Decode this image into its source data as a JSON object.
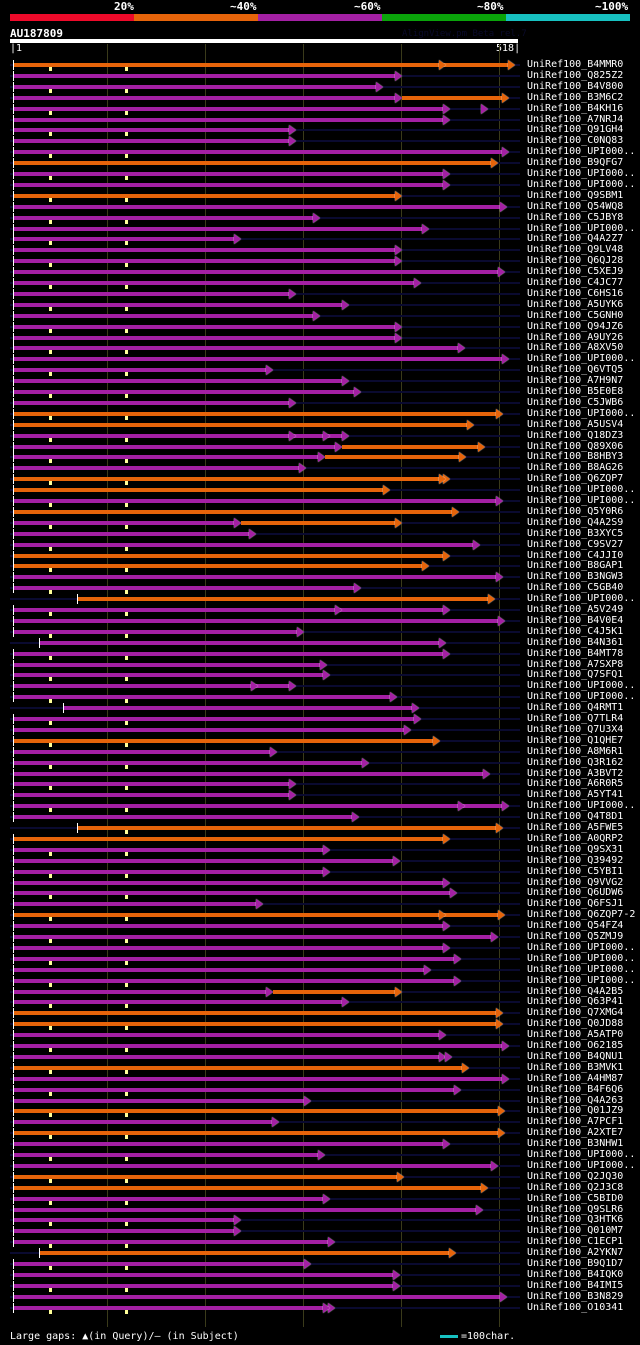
{
  "header": {
    "identity_scale": [
      {
        "label": "20%",
        "color": "#ee0a2a"
      },
      {
        "label": "~40%",
        "color": "#e6640a"
      },
      {
        "label": "~60%",
        "color": "#a420a4"
      },
      {
        "label": "~80%",
        "color": "#0aa40a"
      },
      {
        "label": "~100%",
        "color": "#17c1c1"
      }
    ],
    "query_name": "AU187809",
    "watermark": "AlignView.pm Beta rel.7",
    "query_start": "1",
    "query_end": "518"
  },
  "query_length": 518,
  "colors": {
    "orange": "#e6640a",
    "purple": "#a420a4",
    "track": "#0a0a30",
    "gap_marker": "#ffff99"
  },
  "hits": [
    {
      "name": "UniRef100_B4MMR0",
      "color": "orange",
      "start": 3,
      "end": 518,
      "mark": [
        446
      ]
    },
    {
      "name": "UniRef100_Q825Z2",
      "color": "purple",
      "start": 3,
      "end": 400
    },
    {
      "name": "UniRef100_B4V800",
      "color": "purple",
      "start": 3,
      "end": 380
    },
    {
      "name": "UniRef100_B3M6C2",
      "color": "purple",
      "start": 3,
      "end": 400,
      "tail": "orange",
      "tail_end": 512
    },
    {
      "name": "UniRef100_B4KH16",
      "color": "purple",
      "start": 3,
      "end": 450,
      "mark": [
        490
      ]
    },
    {
      "name": "UniRef100_A7NRJ4",
      "color": "purple",
      "start": 3,
      "end": 450
    },
    {
      "name": "UniRef100_Q91GH4",
      "color": "purple",
      "start": 3,
      "end": 290
    },
    {
      "name": "UniRef100_C0NQ83",
      "color": "purple",
      "start": 3,
      "end": 290
    },
    {
      "name": "UniRef100_UPI000..",
      "color": "purple",
      "start": 3,
      "end": 512
    },
    {
      "name": "UniRef100_B9QFG7",
      "color": "orange",
      "start": 3,
      "end": 500
    },
    {
      "name": "UniRef100_UPI000..",
      "color": "purple",
      "start": 3,
      "end": 450
    },
    {
      "name": "UniRef100_UPI000..",
      "color": "purple",
      "start": 3,
      "end": 450
    },
    {
      "name": "UniRef100_Q9SBM1",
      "color": "orange",
      "start": 3,
      "end": 400
    },
    {
      "name": "UniRef100_Q54WQ8",
      "color": "purple",
      "start": 3,
      "end": 510
    },
    {
      "name": "UniRef100_C5JBY8",
      "color": "purple",
      "start": 3,
      "end": 315
    },
    {
      "name": "UniRef100_UPI000..",
      "color": "purple",
      "start": 3,
      "end": 428
    },
    {
      "name": "UniRef100_Q4A2Z7",
      "color": "purple",
      "start": 3,
      "end": 232
    },
    {
      "name": "UniRef100_Q9LV48",
      "color": "purple",
      "start": 3,
      "end": 400
    },
    {
      "name": "UniRef100_Q6QJ28",
      "color": "purple",
      "start": 3,
      "end": 400
    },
    {
      "name": "UniRef100_C5XEJ9",
      "color": "purple",
      "start": 3,
      "end": 508
    },
    {
      "name": "UniRef100_C4JC77",
      "color": "purple",
      "start": 3,
      "end": 420
    },
    {
      "name": "UniRef100_C6HS16",
      "color": "purple",
      "start": 3,
      "end": 290
    },
    {
      "name": "UniRef100_A5UYK6",
      "color": "purple",
      "start": 3,
      "end": 345
    },
    {
      "name": "UniRef100_C5GNH0",
      "color": "purple",
      "start": 3,
      "end": 315
    },
    {
      "name": "UniRef100_Q94JZ6",
      "color": "purple",
      "start": 3,
      "end": 400
    },
    {
      "name": "UniRef100_A9UY26",
      "color": "purple",
      "start": 3,
      "end": 400
    },
    {
      "name": "UniRef100_A8XV50",
      "color": "purple",
      "start": 3,
      "end": 466
    },
    {
      "name": "UniRef100_UPI000..",
      "color": "purple",
      "start": 3,
      "end": 512
    },
    {
      "name": "UniRef100_Q6VTQ5",
      "color": "purple",
      "start": 3,
      "end": 266
    },
    {
      "name": "UniRef100_A7H9N7",
      "color": "purple",
      "start": 3,
      "end": 345
    },
    {
      "name": "UniRef100_B5E0E8",
      "color": "purple",
      "start": 3,
      "end": 358
    },
    {
      "name": "UniRef100_C5JWB6",
      "color": "purple",
      "start": 3,
      "end": 290
    },
    {
      "name": "UniRef100_UPI000..",
      "color": "orange",
      "start": 3,
      "end": 505
    },
    {
      "name": "UniRef100_A5USV4",
      "color": "orange",
      "start": 3,
      "end": 475
    },
    {
      "name": "UniRef100_Q18DZ3",
      "color": "purple",
      "start": 3,
      "end": 345,
      "mark": [
        290,
        325
      ]
    },
    {
      "name": "UniRef100_Q89X06",
      "color": "purple",
      "start": 3,
      "end": 338,
      "tail": "orange",
      "tail_end": 487
    },
    {
      "name": "UniRef100_B8HBY3",
      "color": "purple",
      "start": 3,
      "end": 320,
      "tail": "orange",
      "tail_end": 467
    },
    {
      "name": "UniRef100_B8AG26",
      "color": "purple",
      "start": 3,
      "end": 300
    },
    {
      "name": "UniRef100_Q6ZQP7",
      "color": "orange",
      "start": 3,
      "end": 450,
      "mark": [
        446
      ]
    },
    {
      "name": "UniRef100_UPI000..",
      "color": "orange",
      "start": 3,
      "end": 388
    },
    {
      "name": "UniRef100_UPI000..",
      "color": "purple",
      "start": 3,
      "end": 505
    },
    {
      "name": "UniRef100_Q5Y0R6",
      "color": "orange",
      "start": 3,
      "end": 460
    },
    {
      "name": "UniRef100_Q4A2S9",
      "color": "purple",
      "start": 3,
      "end": 232,
      "tail": "orange",
      "tail_end": 400
    },
    {
      "name": "UniRef100_B3XYC5",
      "color": "purple",
      "start": 3,
      "end": 248
    },
    {
      "name": "UniRef100_C9SV27",
      "color": "purple",
      "start": 3,
      "end": 482
    },
    {
      "name": "UniRef100_C4JJI0",
      "color": "orange",
      "start": 3,
      "end": 450
    },
    {
      "name": "UniRef100_B8GAP1",
      "color": "orange",
      "start": 3,
      "end": 428
    },
    {
      "name": "UniRef100_B3NGW3",
      "color": "purple",
      "start": 3,
      "end": 505
    },
    {
      "name": "UniRef100_C5GB40",
      "color": "purple",
      "start": 3,
      "end": 358
    },
    {
      "name": "UniRef100_UPI000..",
      "color": "orange",
      "start": 70,
      "end": 497
    },
    {
      "name": "UniRef100_A5V249",
      "color": "purple",
      "start": 3,
      "end": 450,
      "mark": [
        338
      ]
    },
    {
      "name": "UniRef100_B4V0E4",
      "color": "purple",
      "start": 3,
      "end": 508
    },
    {
      "name": "UniRef100_C4J5K1",
      "color": "purple",
      "start": 3,
      "end": 298
    },
    {
      "name": "UniRef100_B4N361",
      "color": "purple",
      "start": 30,
      "end": 446
    },
    {
      "name": "UniRef100_B4MT78",
      "color": "purple",
      "start": 3,
      "end": 450
    },
    {
      "name": "UniRef100_A7SXP8",
      "color": "purple",
      "start": 3,
      "end": 322
    },
    {
      "name": "UniRef100_Q7SFQ1",
      "color": "purple",
      "start": 3,
      "end": 325
    },
    {
      "name": "UniRef100_UPI000..",
      "color": "purple",
      "start": 3,
      "end": 290,
      "mark": [
        250
      ]
    },
    {
      "name": "UniRef100_UPI000..",
      "color": "purple",
      "start": 3,
      "end": 395
    },
    {
      "name": "UniRef100_Q4RMT1",
      "color": "purple",
      "start": 55,
      "end": 418
    },
    {
      "name": "UniRef100_Q7TLR4",
      "color": "purple",
      "start": 3,
      "end": 420
    },
    {
      "name": "UniRef100_Q7U3X4",
      "color": "purple",
      "start": 3,
      "end": 410
    },
    {
      "name": "UniRef100_Q1QHE7",
      "color": "orange",
      "start": 3,
      "end": 440
    },
    {
      "name": "UniRef100_A8M6R1",
      "color": "purple",
      "start": 3,
      "end": 270
    },
    {
      "name": "UniRef100_Q3R162",
      "color": "purple",
      "start": 3,
      "end": 366
    },
    {
      "name": "UniRef100_A3BVT2",
      "color": "purple",
      "start": 3,
      "end": 492
    },
    {
      "name": "UniRef100_A6R0R5",
      "color": "purple",
      "start": 3,
      "end": 290
    },
    {
      "name": "UniRef100_A5YT41",
      "color": "purple",
      "start": 3,
      "end": 290
    },
    {
      "name": "UniRef100_UPI000..",
      "color": "purple",
      "start": 3,
      "end": 512,
      "mark": [
        466
      ]
    },
    {
      "name": "UniRef100_Q4T8D1",
      "color": "purple",
      "start": 3,
      "end": 355
    },
    {
      "name": "UniRef100_A5FWE5",
      "color": "orange",
      "start": 70,
      "end": 505
    },
    {
      "name": "UniRef100_A0QRP2",
      "color": "orange",
      "start": 3,
      "end": 450
    },
    {
      "name": "UniRef100_Q9SX31",
      "color": "purple",
      "start": 3,
      "end": 325
    },
    {
      "name": "UniRef100_Q39492",
      "color": "purple",
      "start": 3,
      "end": 398
    },
    {
      "name": "UniRef100_C5YBI1",
      "color": "purple",
      "start": 3,
      "end": 325
    },
    {
      "name": "UniRef100_Q9VVG2",
      "color": "purple",
      "start": 3,
      "end": 450
    },
    {
      "name": "UniRef100_Q6UDW6",
      "color": "purple",
      "start": 3,
      "end": 458
    },
    {
      "name": "UniRef100_Q6FSJ1",
      "color": "purple",
      "start": 3,
      "end": 255
    },
    {
      "name": "UniRef100_Q6ZQP7-2",
      "color": "orange",
      "start": 3,
      "end": 508,
      "mark": [
        446
      ]
    },
    {
      "name": "UniRef100_Q54FZ4",
      "color": "purple",
      "start": 3,
      "end": 450
    },
    {
      "name": "UniRef100_Q5ZMJ9",
      "color": "purple",
      "start": 3,
      "end": 500
    },
    {
      "name": "UniRef100_UPI000..",
      "color": "purple",
      "start": 3,
      "end": 450
    },
    {
      "name": "UniRef100_UPI000..",
      "color": "purple",
      "start": 3,
      "end": 462
    },
    {
      "name": "UniRef100_UPI000..",
      "color": "purple",
      "start": 3,
      "end": 430
    },
    {
      "name": "UniRef100_UPI000..",
      "color": "purple",
      "start": 3,
      "end": 462
    },
    {
      "name": "UniRef100_Q4A2B5",
      "color": "purple",
      "start": 3,
      "end": 266,
      "tail": "orange",
      "tail_end": 400
    },
    {
      "name": "UniRef100_Q63P41",
      "color": "purple",
      "start": 3,
      "end": 345
    },
    {
      "name": "UniRef100_Q7XMG4",
      "color": "orange",
      "start": 3,
      "end": 505
    },
    {
      "name": "UniRef100_Q0JD88",
      "color": "orange",
      "start": 3,
      "end": 505
    },
    {
      "name": "UniRef100_A5ATP0",
      "color": "purple",
      "start": 3,
      "end": 446
    },
    {
      "name": "UniRef100_O62185",
      "color": "purple",
      "start": 3,
      "end": 512
    },
    {
      "name": "UniRef100_B4QNU1",
      "color": "purple",
      "start": 3,
      "end": 446,
      "mark": [
        452
      ]
    },
    {
      "name": "UniRef100_B3MVK1",
      "color": "orange",
      "start": 3,
      "end": 470
    },
    {
      "name": "UniRef100_A4HM87",
      "color": "purple",
      "start": 3,
      "end": 512
    },
    {
      "name": "UniRef100_B4F6Q6",
      "color": "purple",
      "start": 3,
      "end": 462
    },
    {
      "name": "UniRef100_Q4A263",
      "color": "purple",
      "start": 3,
      "end": 305
    },
    {
      "name": "UniRef100_Q01JZ9",
      "color": "orange",
      "start": 3,
      "end": 508
    },
    {
      "name": "UniRef100_A7PCF1",
      "color": "purple",
      "start": 3,
      "end": 272
    },
    {
      "name": "UniRef100_A2XTE7",
      "color": "orange",
      "start": 3,
      "end": 508
    },
    {
      "name": "UniRef100_B3NHW1",
      "color": "purple",
      "start": 3,
      "end": 450
    },
    {
      "name": "UniRef100_UPI000..",
      "color": "purple",
      "start": 3,
      "end": 320
    },
    {
      "name": "UniRef100_UPI000..",
      "color": "purple",
      "start": 3,
      "end": 500
    },
    {
      "name": "UniRef100_Q2JQ30",
      "color": "orange",
      "start": 3,
      "end": 402
    },
    {
      "name": "UniRef100_Q2J3C8",
      "color": "orange",
      "start": 3,
      "end": 490
    },
    {
      "name": "UniRef100_C5BID0",
      "color": "purple",
      "start": 3,
      "end": 325
    },
    {
      "name": "UniRef100_Q9SLR6",
      "color": "purple",
      "start": 3,
      "end": 485
    },
    {
      "name": "UniRef100_Q3HTK6",
      "color": "purple",
      "start": 3,
      "end": 232
    },
    {
      "name": "UniRef100_Q010M7",
      "color": "purple",
      "start": 3,
      "end": 232
    },
    {
      "name": "UniRef100_C1ECP1",
      "color": "purple",
      "start": 3,
      "end": 330
    },
    {
      "name": "UniRef100_A2YKN7",
      "color": "orange",
      "start": 30,
      "end": 457
    },
    {
      "name": "UniRef100_B9Q1D7",
      "color": "purple",
      "start": 3,
      "end": 305
    },
    {
      "name": "UniRef100_B4IQK0",
      "color": "purple",
      "start": 3,
      "end": 398
    },
    {
      "name": "UniRef100_B4IMI5",
      "color": "purple",
      "start": 3,
      "end": 398
    },
    {
      "name": "UniRef100_B3N829",
      "color": "purple",
      "start": 3,
      "end": 510
    },
    {
      "name": "UniRef100_O10341",
      "color": "purple",
      "start": 3,
      "end": 330,
      "mark": [
        325
      ]
    }
  ],
  "footer": {
    "large_gaps_label": "Large gaps: ▲(in Query)/— (in Subject)",
    "scale_label": "=100char."
  }
}
